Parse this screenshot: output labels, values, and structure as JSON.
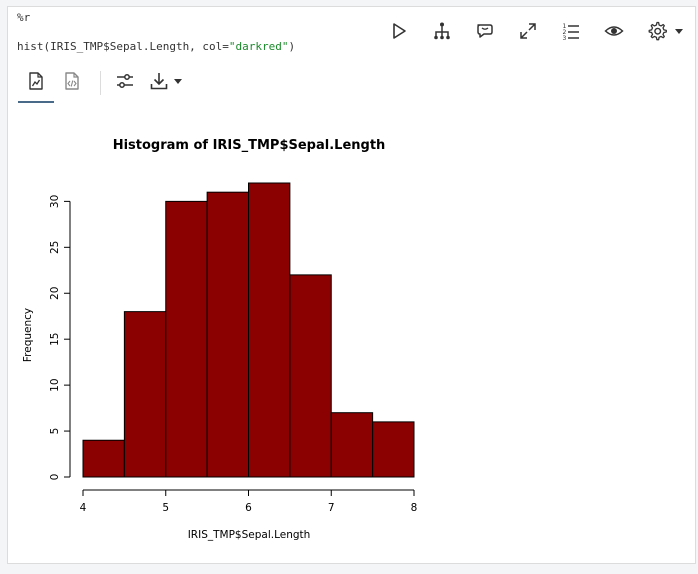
{
  "code": {
    "magic": "%r",
    "fn_call_prefix": "hist(IRIS_TMP$Sepal.Length, col=",
    "fn_call_string": "\"darkred\"",
    "fn_call_suffix": ")"
  },
  "toolbar": {
    "icons": [
      "play-icon",
      "hierarchy-icon",
      "comments-icon",
      "expand-icon",
      "numbered-list-icon",
      "eye-icon",
      "gear-icon"
    ]
  },
  "output_tabs": {
    "icons": [
      "chart-document-icon",
      "code-document-icon"
    ],
    "tools": [
      "sliders-icon",
      "download-icon"
    ]
  },
  "colors": {
    "bar_fill": "#8b0000",
    "accent": "#4a6a8a"
  },
  "chart_data": {
    "type": "bar",
    "title": "Histogram of IRIS_TMP$Sepal.Length",
    "xlabel": "IRIS_TMP$Sepal.Length",
    "ylabel": "Frequency",
    "bins": [
      [
        4,
        4.5
      ],
      [
        4.5,
        5
      ],
      [
        5,
        5.5
      ],
      [
        5.5,
        6
      ],
      [
        6,
        6.5
      ],
      [
        6.5,
        7
      ],
      [
        7,
        7.5
      ],
      [
        7.5,
        8
      ]
    ],
    "values": [
      4,
      18,
      30,
      31,
      32,
      22,
      7,
      6
    ],
    "xlim": [
      4,
      8
    ],
    "ylim": [
      0,
      32
    ],
    "xticks": [
      "4",
      "5",
      "6",
      "7",
      "8"
    ],
    "yticks": [
      "0",
      "5",
      "10",
      "15",
      "20",
      "25",
      "30"
    ],
    "grid": false
  }
}
